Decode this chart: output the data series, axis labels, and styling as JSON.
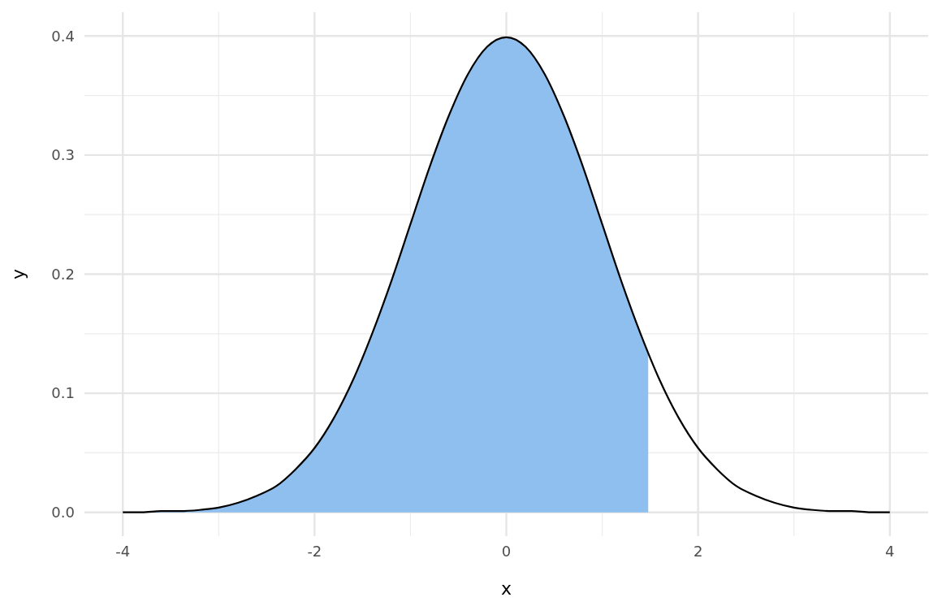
{
  "chart_data": {
    "type": "line",
    "xlabel": "x",
    "ylabel": "y",
    "xlim": [
      -4.4,
      4.4
    ],
    "xticks": [
      -4,
      -2,
      0,
      2,
      4
    ],
    "ylim": [
      -0.02,
      0.42
    ],
    "yticks": [
      {
        "value": 0,
        "label": "0.0"
      },
      0.1,
      0.2,
      0.3,
      0.4
    ],
    "grid": true,
    "marker": "none",
    "line_style": "solid",
    "series": [
      {
        "type": "area",
        "color": "#8ebfee",
        "x": [
          -4,
          -3.8,
          -3.6,
          -3.4,
          -3.2,
          -3,
          -2.8,
          -2.6,
          -2.4,
          -2.2,
          -2,
          -1.8,
          -1.6,
          -1.4,
          -1.2,
          -1,
          -0.8,
          -0.6,
          -0.4,
          -0.2,
          0,
          0.2,
          0.4,
          0.6,
          0.8,
          1,
          1.2,
          1.4,
          1.48
        ],
        "values": [
          0.0,
          0.0,
          0.001,
          0.001,
          0.002,
          0.004,
          0.008,
          0.014,
          0.022,
          0.036,
          0.054,
          0.079,
          0.111,
          0.15,
          0.194,
          0.242,
          0.29,
          0.333,
          0.368,
          0.391,
          0.399,
          0.391,
          0.368,
          0.333,
          0.29,
          0.242,
          0.194,
          0.15,
          0.133
        ]
      },
      {
        "color": "#000000",
        "x": [
          -4,
          -3.8,
          -3.6,
          -3.4,
          -3.2,
          -3,
          -2.8,
          -2.6,
          -2.4,
          -2.2,
          -2,
          -1.8,
          -1.6,
          -1.4,
          -1.2,
          -1,
          -0.8,
          -0.6,
          -0.4,
          -0.2,
          0,
          0.2,
          0.4,
          0.6,
          0.8,
          1,
          1.2,
          1.4,
          1.6,
          1.8,
          2,
          2.2,
          2.4,
          2.6,
          2.8,
          3,
          3.2,
          3.4,
          3.6,
          3.8,
          4
        ],
        "values": [
          0.0,
          0.0,
          0.001,
          0.001,
          0.002,
          0.004,
          0.008,
          0.014,
          0.022,
          0.036,
          0.054,
          0.079,
          0.111,
          0.15,
          0.194,
          0.242,
          0.29,
          0.333,
          0.368,
          0.391,
          0.399,
          0.391,
          0.368,
          0.333,
          0.29,
          0.242,
          0.194,
          0.15,
          0.111,
          0.079,
          0.054,
          0.036,
          0.022,
          0.014,
          0.008,
          0.004,
          0.002,
          0.001,
          0.001,
          0.0,
          0.0
        ]
      }
    ]
  }
}
